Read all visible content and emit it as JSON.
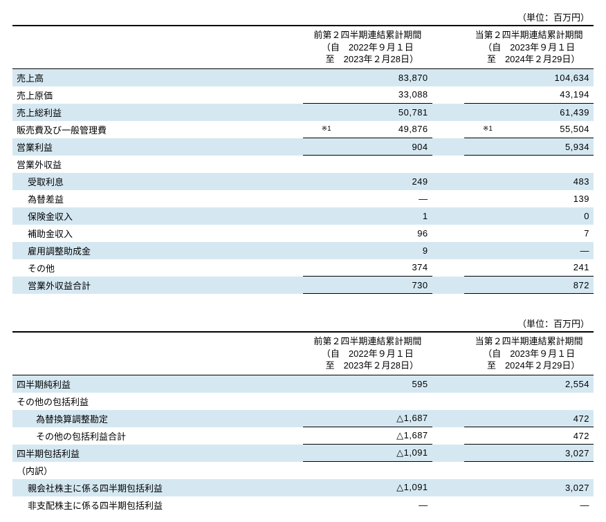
{
  "unit_label": "（単位：百万円）",
  "period_prev": {
    "title": "前第２四半期連結累計期間",
    "from": "（自　2022年９月１日",
    "to": "　至　2023年２月28日）"
  },
  "period_curr": {
    "title": "当第２四半期連結累計期間",
    "from": "（自　2023年９月１日",
    "to": "　至　2024年２月29日）"
  },
  "note_mark": "※1",
  "t1": {
    "rows": [
      {
        "label": "売上高",
        "p": "83,870",
        "c": "104,634",
        "shade": true,
        "indent": 0,
        "p_bb": false,
        "c_bb": false
      },
      {
        "label": "売上原価",
        "p": "33,088",
        "c": "43,194",
        "shade": false,
        "indent": 0,
        "p_bb": true,
        "c_bb": true
      },
      {
        "label": "売上総利益",
        "p": "50,781",
        "c": "61,439",
        "shade": true,
        "indent": 0,
        "p_bb": false,
        "c_bb": false
      },
      {
        "label": "販売費及び一般管理費",
        "p": "49,876",
        "c": "55,504",
        "shade": false,
        "indent": 0,
        "p_bb": true,
        "c_bb": true,
        "p_note": true,
        "c_note": true
      },
      {
        "label": "営業利益",
        "p": "904",
        "c": "5,934",
        "shade": true,
        "indent": 0,
        "p_bb": true,
        "c_bb": true
      },
      {
        "label": "営業外収益",
        "p": "",
        "c": "",
        "shade": false,
        "indent": 0
      },
      {
        "label": "受取利息",
        "p": "249",
        "c": "483",
        "shade": true,
        "indent": 1
      },
      {
        "label": "為替差益",
        "p": "―",
        "c": "139",
        "shade": false,
        "indent": 1
      },
      {
        "label": "保険金収入",
        "p": "1",
        "c": "0",
        "shade": true,
        "indent": 1
      },
      {
        "label": "補助金収入",
        "p": "96",
        "c": "7",
        "shade": false,
        "indent": 1
      },
      {
        "label": "雇用調整助成金",
        "p": "9",
        "c": "―",
        "shade": true,
        "indent": 1
      },
      {
        "label": "その他",
        "p": "374",
        "c": "241",
        "shade": false,
        "indent": 1,
        "p_bb": true,
        "c_bb": true
      },
      {
        "label": "営業外収益合計",
        "p": "730",
        "c": "872",
        "shade": true,
        "indent": 1,
        "p_bb": true,
        "c_bb": true
      }
    ]
  },
  "t2": {
    "rows": [
      {
        "label": "四半期純利益",
        "p": "595",
        "c": "2,554",
        "shade": true,
        "indent": 0
      },
      {
        "label": "その他の包括利益",
        "p": "",
        "c": "",
        "shade": false,
        "indent": 0
      },
      {
        "label": "為替換算調整勘定",
        "p": "△1,687",
        "c": "472",
        "shade": true,
        "indent": 2
      },
      {
        "label": "その他の包括利益合計",
        "p": "△1,687",
        "c": "472",
        "shade": false,
        "indent": 2,
        "p_bt": true,
        "c_bt": true,
        "p_bb": true,
        "c_bb": true
      },
      {
        "label": "四半期包括利益",
        "p": "△1,091",
        "c": "3,027",
        "shade": true,
        "indent": 0,
        "p_bb": true,
        "c_bb": true
      },
      {
        "label": "（内訳）",
        "p": "",
        "c": "",
        "shade": false,
        "indent": 0
      },
      {
        "label": "親会社株主に係る四半期包括利益",
        "p": "△1,091",
        "c": "3,027",
        "shade": true,
        "indent": 1
      },
      {
        "label": "非支配株主に係る四半期包括利益",
        "p": "―",
        "c": "―",
        "shade": false,
        "indent": 1
      }
    ]
  },
  "style": {
    "shade_color": "#d5e8f2",
    "border_color": "#000000",
    "font_size_pt": 10
  }
}
